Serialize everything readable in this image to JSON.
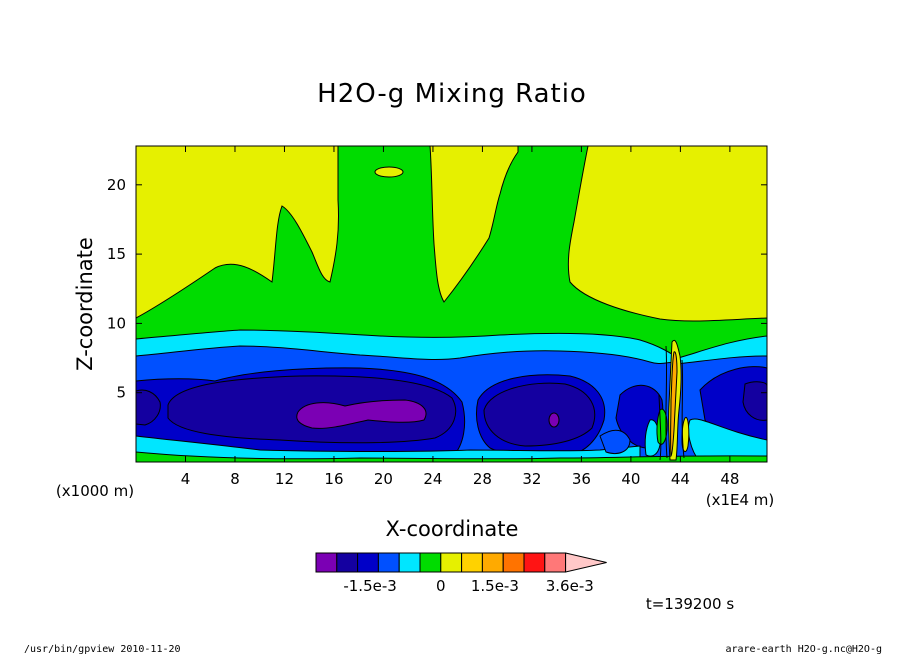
{
  "chart_data": {
    "type": "contour",
    "title": "H2O-g Mixing Ratio",
    "xlabel": "X-coordinate",
    "ylabel": "Z-coordinate",
    "x_unit": "(x1000 m)",
    "x_scale_note": "(x1E4 m)",
    "x_ticks": [
      4,
      8,
      12,
      16,
      20,
      24,
      28,
      32,
      36,
      40,
      44,
      48
    ],
    "y_ticks": [
      5,
      10,
      15,
      20
    ],
    "xlim": [
      0,
      51
    ],
    "ylim": [
      0,
      22.8
    ],
    "colorbar": {
      "colors": [
        "#7b00b4",
        "#1400a0",
        "#0000c8",
        "#0050ff",
        "#00e6ff",
        "#00dc00",
        "#e6f000",
        "#ffd200",
        "#ffaa00",
        "#ff7300",
        "#ff1414",
        "#ff7878",
        "#ffc8c8"
      ],
      "tick_labels": [
        "-1.5e-3",
        "0",
        "1.5e-3",
        "3.6e-3"
      ]
    },
    "time_label": "t=139200 s"
  },
  "footer": {
    "left": "/usr/bin/gpview  2010-11-20",
    "right": "arare-earth_H2O-g.nc@H2O-g"
  }
}
